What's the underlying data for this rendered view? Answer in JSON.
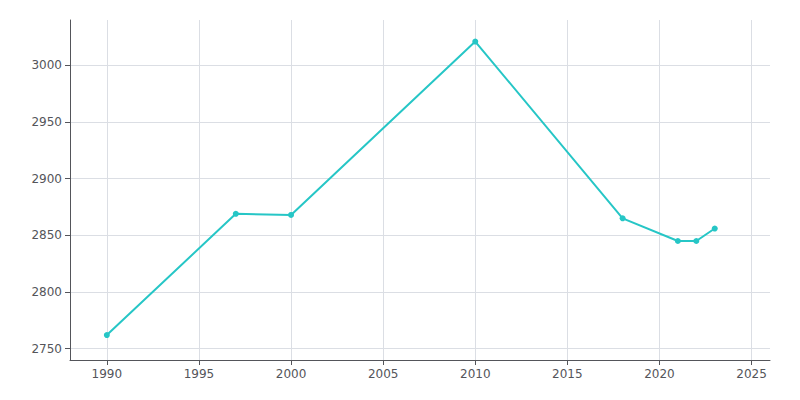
{
  "chart_data": {
    "type": "line",
    "x": [
      1990,
      1997,
      2000,
      2010,
      2018,
      2021,
      2022,
      2023
    ],
    "values": [
      2762,
      2869,
      2868,
      3021,
      2865,
      2845,
      2845,
      2856
    ],
    "color": "#26C6C6",
    "marker": "circle",
    "xlim": [
      1988,
      2026
    ],
    "ylim": [
      2740,
      3040
    ],
    "xticks": [
      1990,
      1995,
      2000,
      2005,
      2010,
      2015,
      2020,
      2025
    ],
    "yticks": [
      2750,
      2800,
      2850,
      2900,
      2950,
      3000
    ],
    "grid": true
  }
}
